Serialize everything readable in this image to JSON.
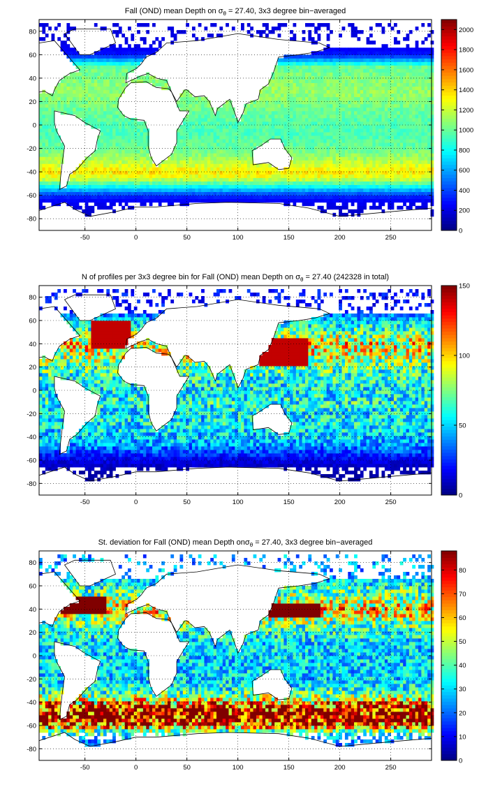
{
  "chart_data": [
    {
      "type": "heatmap",
      "title_parts": [
        "Fall (OND) mean Depth on ",
        "σ",
        "θ",
        " = 27.40, 3x3 degree bin−averaged"
      ],
      "xlabel": "",
      "ylabel": "",
      "xlim": [
        -95,
        290
      ],
      "ylim": [
        -90,
        90
      ],
      "xticks": [
        -50,
        0,
        50,
        100,
        150,
        200,
        250
      ],
      "yticks": [
        -80,
        -60,
        -40,
        -20,
        0,
        20,
        40,
        60,
        80
      ],
      "grid": true,
      "colormap": "jet",
      "clim": [
        0,
        2100
      ],
      "colorbar_ticks": [
        0,
        200,
        400,
        600,
        800,
        1000,
        1200,
        1400,
        1600,
        1800,
        2000
      ],
      "field_description": "depth of the 27.40 isopycnal; ~1000-1200 in subtropics, 1300-1600 near 40S, 0-400 south of 55S and in the Labrador/Nordic seas",
      "zonal_profile": {
        "lat": [
          -75,
          -65,
          -60,
          -55,
          -50,
          -45,
          -40,
          -30,
          -20,
          -10,
          0,
          10,
          20,
          30,
          40,
          50,
          60,
          70
        ],
        "value": [
          150,
          250,
          350,
          650,
          950,
          1250,
          1350,
          1150,
          1000,
          950,
          950,
          1000,
          1050,
          1100,
          1050,
          1000,
          300,
          200
        ]
      }
    },
    {
      "type": "heatmap",
      "title_parts": [
        "N of profiles per 3x3 degree bin for Fall (OND) mean Depth on ",
        "σ",
        "θ",
        " = 27.40 (242328 in total)"
      ],
      "xlabel": "",
      "ylabel": "",
      "xlim": [
        -95,
        290
      ],
      "ylim": [
        -90,
        90
      ],
      "xticks": [
        -50,
        0,
        50,
        100,
        150,
        200,
        250
      ],
      "yticks": [
        -80,
        -60,
        -40,
        -20,
        0,
        20,
        40,
        60,
        80
      ],
      "grid": true,
      "colormap": "jet",
      "clim": [
        0,
        150
      ],
      "colorbar_ticks": [
        0,
        50,
        100,
        150
      ],
      "total_profiles": 242328,
      "field_description": "profile counts per bin; mostly 30-80, >130 in NW Pacific, N Atlantic and Arabian Sea, <20 south of 55S",
      "zonal_profile": {
        "lat": [
          -75,
          -65,
          -60,
          -55,
          -50,
          -45,
          -40,
          -30,
          -20,
          -10,
          0,
          10,
          20,
          30,
          40,
          50,
          60,
          70
        ],
        "value": [
          5,
          10,
          15,
          25,
          35,
          45,
          50,
          55,
          55,
          60,
          55,
          60,
          70,
          85,
          95,
          70,
          50,
          20
        ]
      }
    },
    {
      "type": "heatmap",
      "title_parts": [
        "St. deviation for Fall (OND) mean Depth on",
        "σ",
        "θ",
        " = 27.40, 3x3 degree bin−averaged"
      ],
      "xlabel": "",
      "ylabel": "",
      "xlim": [
        -95,
        290
      ],
      "ylim": [
        -90,
        90
      ],
      "xticks": [
        -50,
        0,
        50,
        100,
        150,
        200,
        250
      ],
      "yticks": [
        -80,
        -60,
        -40,
        -20,
        0,
        20,
        40,
        60,
        80
      ],
      "grid": true,
      "colormap": "jet",
      "clim": [
        0,
        88
      ],
      "colorbar_ticks": [
        0,
        10,
        20,
        30,
        40,
        50,
        60,
        70,
        80
      ],
      "field_description": "standard deviation; ~20-45 in most basins, >80 in the band 40S-60S and in the Gulf Stream / Kuroshio extensions",
      "zonal_profile": {
        "lat": [
          -75,
          -65,
          -60,
          -55,
          -50,
          -45,
          -40,
          -30,
          -20,
          -10,
          0,
          10,
          20,
          30,
          40,
          50,
          60,
          70
        ],
        "value": [
          20,
          40,
          70,
          85,
          88,
          85,
          60,
          35,
          30,
          30,
          30,
          30,
          35,
          45,
          60,
          45,
          35,
          25
        ]
      }
    }
  ]
}
